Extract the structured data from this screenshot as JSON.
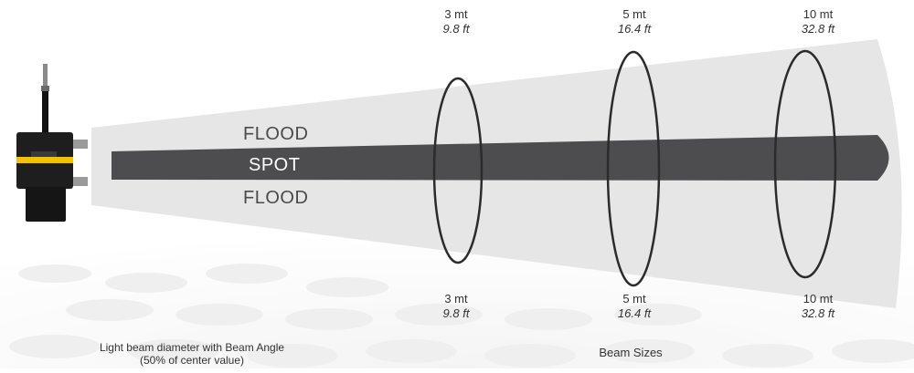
{
  "beam_labels": {
    "flood_top": "FLOOD",
    "spot": "SPOT",
    "flood_bottom": "FLOOD"
  },
  "distances": [
    {
      "metric": "3 mt",
      "imperial": "9.8 ft"
    },
    {
      "metric": "5 mt",
      "imperial": "16.4 ft"
    },
    {
      "metric": "10 mt",
      "imperial": "32.8 ft"
    }
  ],
  "captions": {
    "left_line1": "Light beam diameter with Beam Angle",
    "left_line2": "(50% of center value)",
    "right": "Beam Sizes"
  },
  "colors": {
    "flood_cone": "#e6e6e6",
    "spot_beam": "#4d4d4f",
    "ring": "#2b2b2b",
    "fixture_body": "#1e1e1e",
    "fixture_stripe": "#f2c200"
  }
}
